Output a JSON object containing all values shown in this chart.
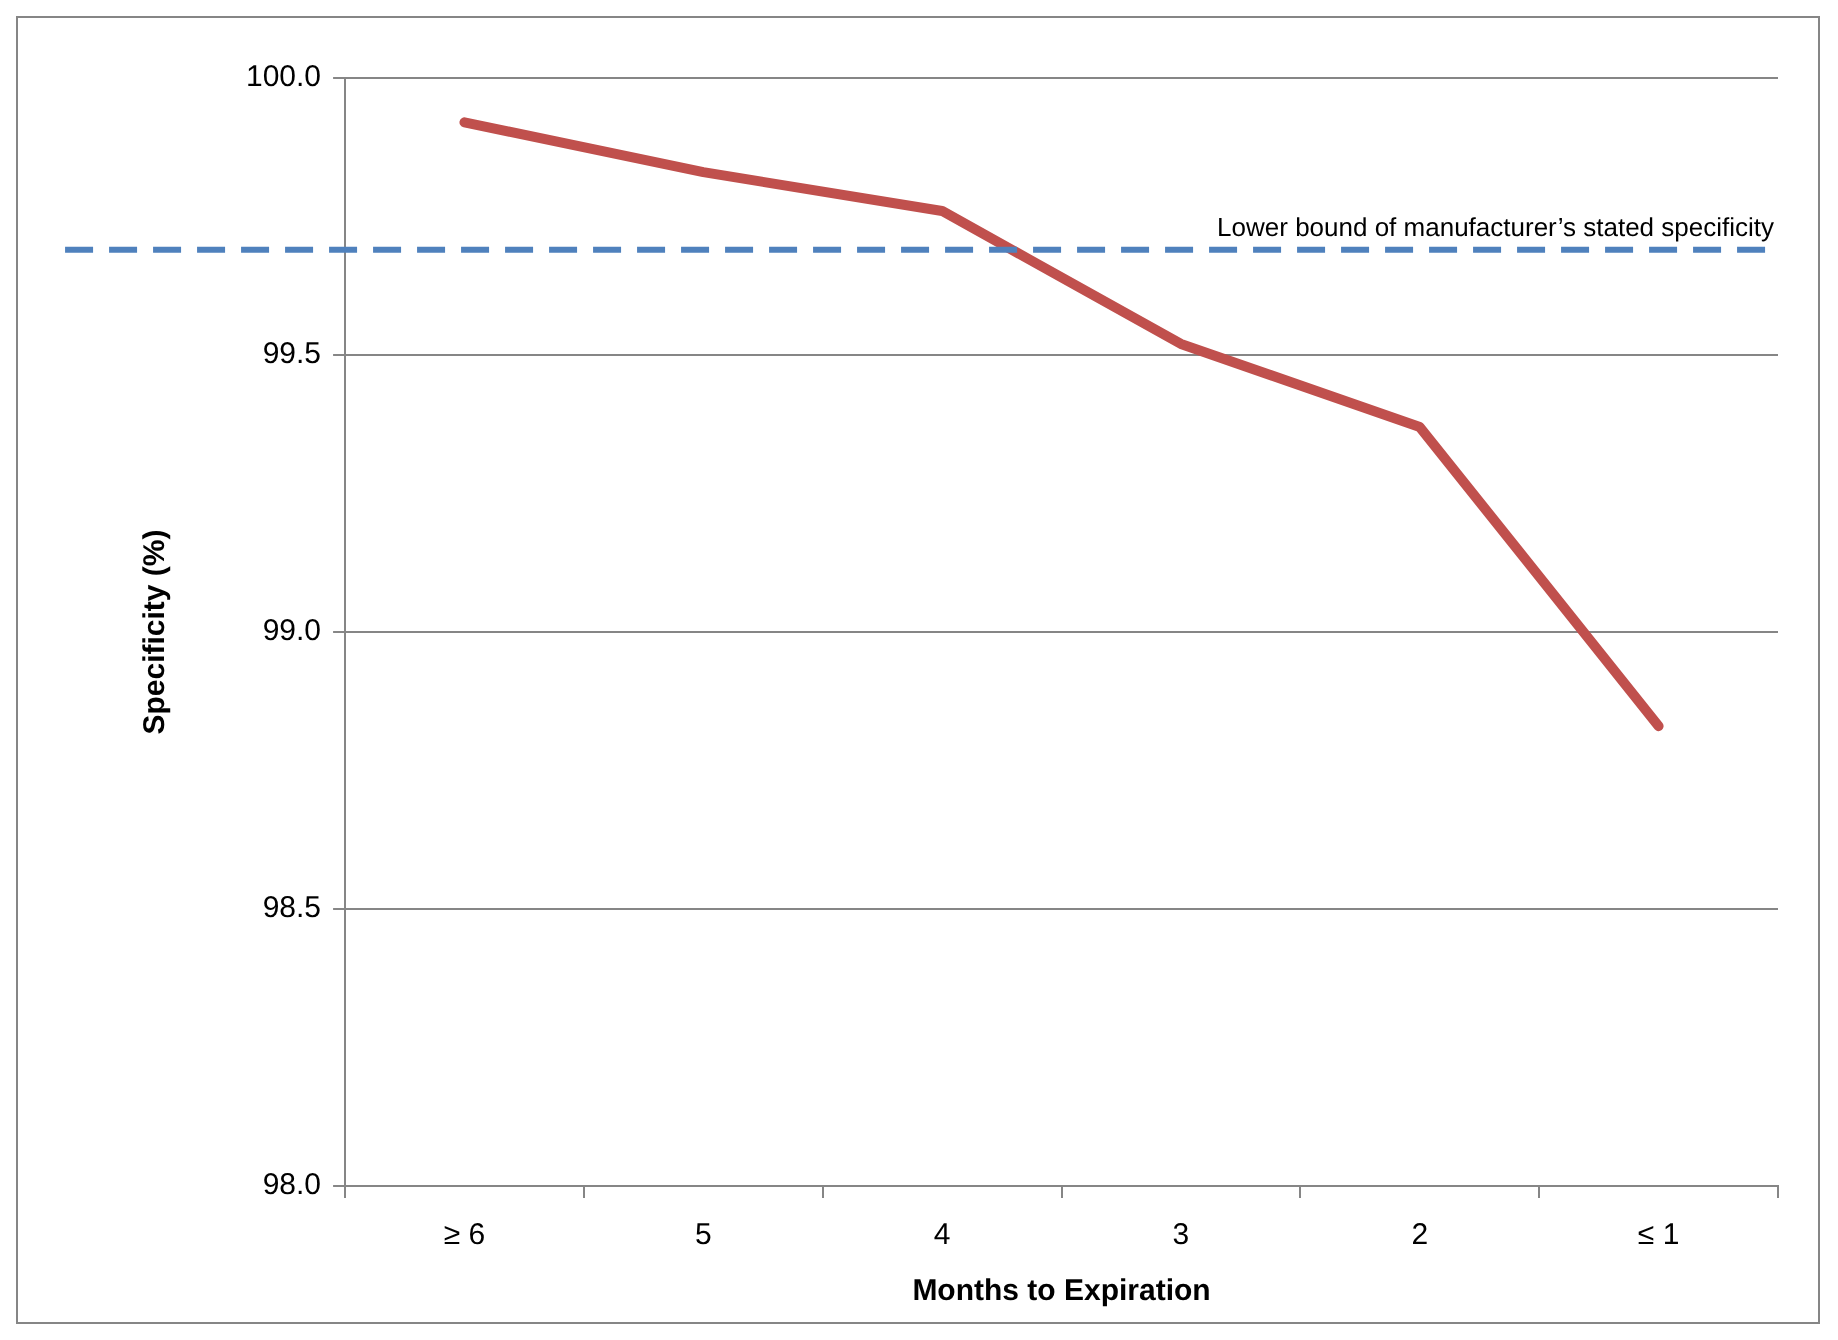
{
  "chart_data": {
    "type": "line",
    "xlabel": "Months to Expiration",
    "ylabel": "Specificity (%)",
    "categories": [
      "≥ 6",
      "5",
      "4",
      "3",
      "2",
      "≤ 1"
    ],
    "series": [
      {
        "color": "#c0504d",
        "values": [
          99.92,
          99.83,
          99.76,
          99.52,
          99.37,
          98.83
        ]
      }
    ],
    "ylim": [
      98,
      100
    ],
    "yticks": [
      {
        "value": 98,
        "label": "98.0"
      },
      {
        "value": 98.5,
        "label": "98.5"
      },
      {
        "value": 99,
        "label": "99.0"
      },
      {
        "value": 99.5,
        "label": "99.5"
      },
      {
        "value": 100,
        "label": "100.0"
      }
    ],
    "ref_lines": [
      {
        "axis": "y",
        "value": 99.69,
        "label": "Lower bound of manufacturer’s stated specificity",
        "color": "#4f81bd",
        "line_style": "dashed"
      }
    ],
    "grid": "y",
    "marker": "none",
    "line_style": "solid"
  }
}
